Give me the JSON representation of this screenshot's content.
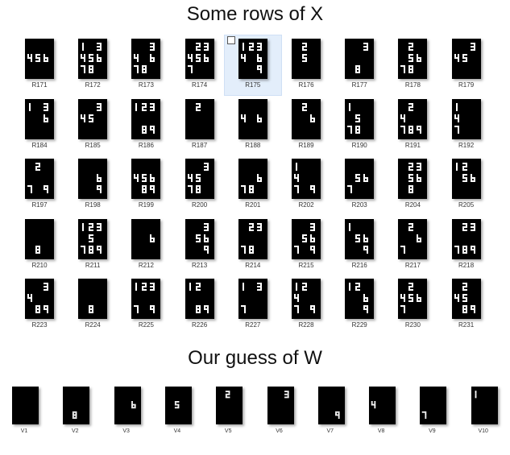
{
  "titles": {
    "rows": "Some rows  of  X",
    "guess": "Our guess of W"
  },
  "selected_index": 4,
  "x_rows": [
    {
      "label": "R171",
      "digits": [
        4,
        5,
        6
      ]
    },
    {
      "label": "R172",
      "digits": [
        1,
        3,
        4,
        5,
        6,
        7,
        8
      ]
    },
    {
      "label": "R173",
      "digits": [
        3,
        4,
        6,
        7,
        8
      ]
    },
    {
      "label": "R174",
      "digits": [
        2,
        3,
        4,
        5,
        6,
        7
      ]
    },
    {
      "label": "R175",
      "digits": [
        1,
        2,
        3,
        4,
        6,
        9
      ]
    },
    {
      "label": "R176",
      "digits": [
        2,
        5
      ]
    },
    {
      "label": "R177",
      "digits": [
        3,
        8
      ]
    },
    {
      "label": "R178",
      "digits": [
        2,
        5,
        6,
        7,
        8
      ]
    },
    {
      "label": "R179",
      "digits": [
        3,
        4,
        5
      ]
    },
    {
      "label": "R184",
      "digits": [
        1,
        3,
        6
      ]
    },
    {
      "label": "R185",
      "digits": [
        3,
        4,
        5
      ]
    },
    {
      "label": "R186",
      "digits": [
        1,
        2,
        3,
        8,
        9
      ]
    },
    {
      "label": "R187",
      "digits": [
        2
      ]
    },
    {
      "label": "R188",
      "digits": [
        4,
        6
      ]
    },
    {
      "label": "R189",
      "digits": [
        2,
        6
      ]
    },
    {
      "label": "R190",
      "digits": [
        1,
        5,
        7,
        8
      ]
    },
    {
      "label": "R191",
      "digits": [
        2,
        4,
        7,
        8,
        9
      ]
    },
    {
      "label": "R192",
      "digits": [
        1,
        4,
        7
      ]
    },
    {
      "label": "R197",
      "digits": [
        2,
        7,
        9
      ]
    },
    {
      "label": "R198",
      "digits": [
        6,
        9
      ]
    },
    {
      "label": "R199",
      "digits": [
        4,
        5,
        6,
        8,
        9
      ]
    },
    {
      "label": "R200",
      "digits": [
        3,
        4,
        5,
        7,
        8
      ]
    },
    {
      "label": "R201",
      "digits": [
        6,
        7,
        8
      ]
    },
    {
      "label": "R202",
      "digits": [
        1,
        4,
        7,
        9
      ]
    },
    {
      "label": "R203",
      "digits": [
        5,
        6,
        7
      ]
    },
    {
      "label": "R204",
      "digits": [
        2,
        3,
        5,
        6,
        8
      ]
    },
    {
      "label": "R205",
      "digits": [
        1,
        2,
        5,
        6
      ]
    },
    {
      "label": "R210",
      "digits": [
        8
      ]
    },
    {
      "label": "R211",
      "digits": [
        1,
        2,
        3,
        5,
        7,
        8,
        9
      ]
    },
    {
      "label": "R212",
      "digits": [
        6
      ]
    },
    {
      "label": "R213",
      "digits": [
        3,
        5,
        6,
        9
      ]
    },
    {
      "label": "R214",
      "digits": [
        2,
        3,
        7,
        8
      ]
    },
    {
      "label": "R215",
      "digits": [
        3,
        5,
        6,
        7,
        9
      ]
    },
    {
      "label": "R216",
      "digits": [
        1,
        5,
        6,
        9
      ]
    },
    {
      "label": "R217",
      "digits": [
        2,
        6,
        7
      ]
    },
    {
      "label": "R218",
      "digits": [
        2,
        3,
        7,
        8,
        9
      ]
    },
    {
      "label": "R223",
      "digits": [
        3,
        4,
        8,
        9
      ]
    },
    {
      "label": "R224",
      "digits": [
        8
      ]
    },
    {
      "label": "R225",
      "digits": [
        1,
        2,
        3,
        7,
        9
      ]
    },
    {
      "label": "R226",
      "digits": [
        1,
        2,
        8,
        9
      ]
    },
    {
      "label": "R227",
      "digits": [
        1,
        3,
        7
      ]
    },
    {
      "label": "R228",
      "digits": [
        1,
        2,
        4,
        7,
        9
      ]
    },
    {
      "label": "R229",
      "digits": [
        1,
        2,
        6,
        9
      ]
    },
    {
      "label": "R230",
      "digits": [
        2,
        4,
        5,
        6,
        7
      ]
    },
    {
      "label": "R231",
      "digits": [
        2,
        4,
        5,
        8,
        9
      ]
    }
  ],
  "w_guess": [
    {
      "label": "V1",
      "digits": []
    },
    {
      "label": "V2",
      "digits": [
        8
      ]
    },
    {
      "label": "V3",
      "digits": [
        6
      ]
    },
    {
      "label": "V4",
      "digits": [
        5
      ]
    },
    {
      "label": "V5",
      "digits": [
        2
      ]
    },
    {
      "label": "V6",
      "digits": [
        3
      ]
    },
    {
      "label": "V7",
      "digits": [
        9
      ]
    },
    {
      "label": "V8",
      "digits": [
        4
      ]
    },
    {
      "label": "V9",
      "digits": [
        7
      ]
    },
    {
      "label": "V10",
      "digits": [
        1
      ]
    }
  ]
}
